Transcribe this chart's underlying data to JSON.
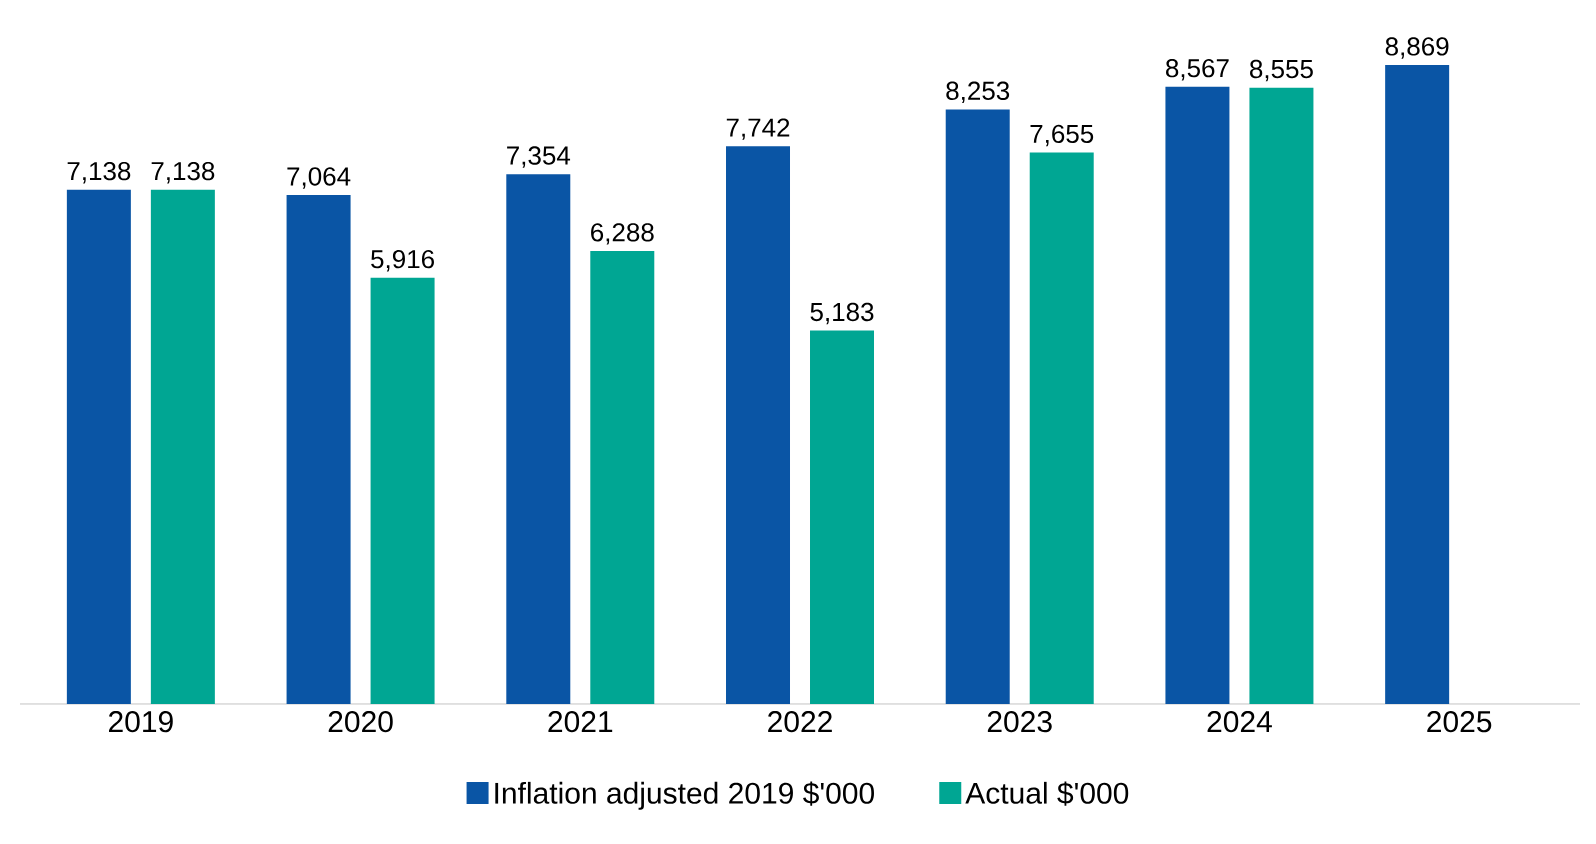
{
  "chart_data": {
    "type": "bar",
    "categories": [
      "2019",
      "2020",
      "2021",
      "2022",
      "2023",
      "2024",
      "2025"
    ],
    "series": [
      {
        "name": "Inflation adjusted 2019 $'000",
        "color": "#0a55a5",
        "values": [
          7138,
          7064,
          7354,
          7742,
          8253,
          8567,
          8869
        ],
        "value_labels": [
          "7,138",
          "7,064",
          "7,354",
          "7,742",
          "8,253",
          "8,567",
          "8,869"
        ]
      },
      {
        "name": "Actual $'000",
        "color": "#00a693",
        "values": [
          7138,
          5916,
          6288,
          5183,
          7655,
          8555,
          null
        ],
        "value_labels": [
          "7,138",
          "5,916",
          "6,288",
          "5,183",
          "7,655",
          "8,555",
          null
        ]
      }
    ],
    "legend": "bottom"
  }
}
